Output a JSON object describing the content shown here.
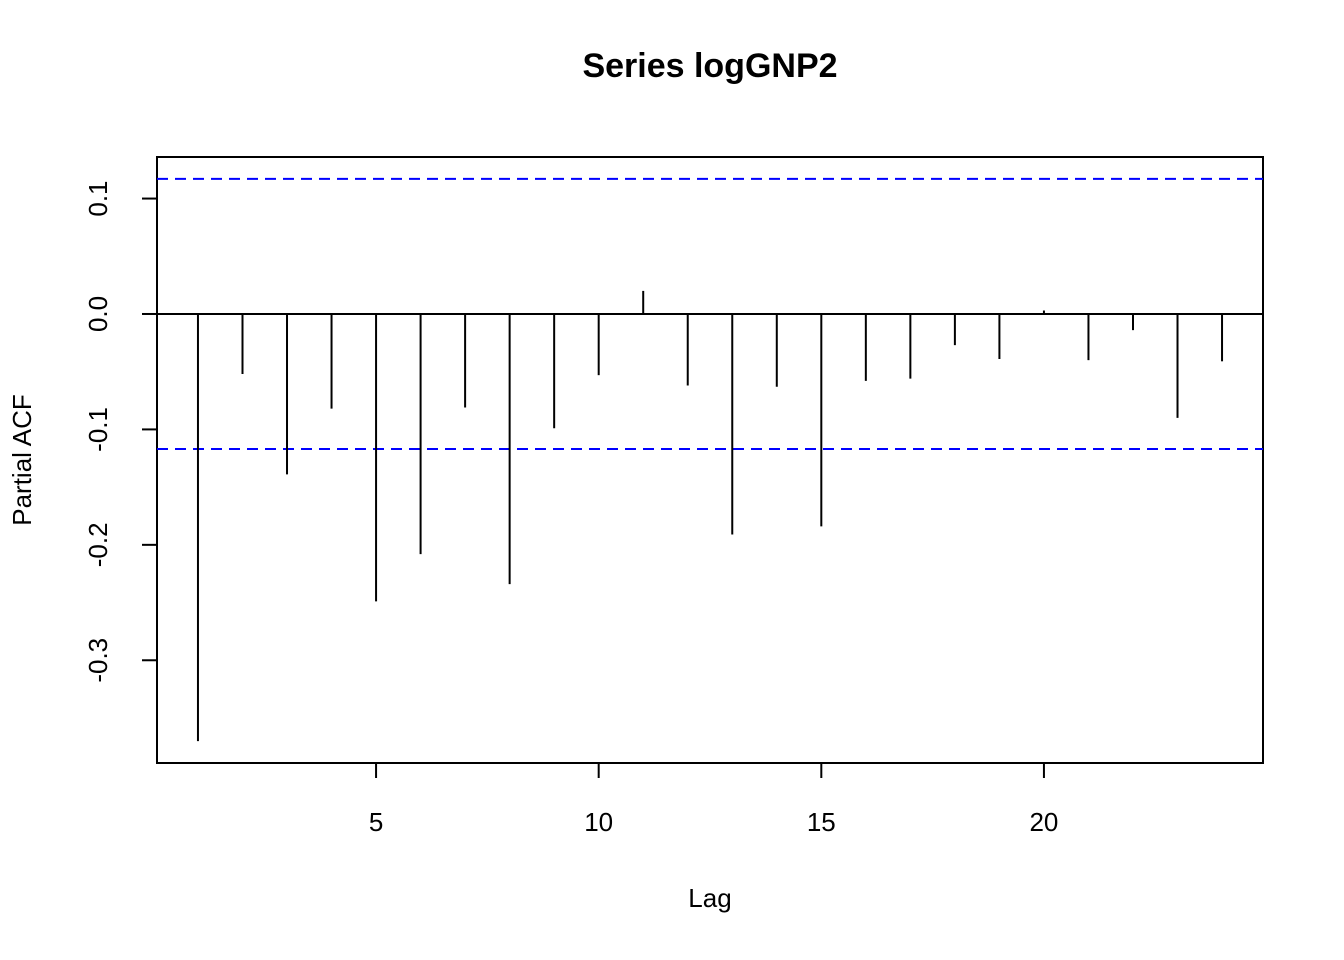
{
  "chart_data": {
    "type": "pacf",
    "title": "Series  logGNP2",
    "xlabel": "Lag",
    "ylabel": "Partial ACF",
    "x": [
      1,
      2,
      3,
      4,
      5,
      6,
      7,
      8,
      9,
      10,
      11,
      12,
      13,
      14,
      15,
      16,
      17,
      18,
      19,
      20,
      21,
      22,
      23,
      24
    ],
    "values": [
      -0.37,
      -0.052,
      -0.139,
      -0.082,
      -0.249,
      -0.208,
      -0.081,
      -0.234,
      -0.099,
      -0.053,
      0.02,
      -0.062,
      -0.191,
      -0.063,
      -0.184,
      -0.058,
      -0.056,
      -0.027,
      -0.039,
      0.003,
      -0.04,
      -0.014,
      -0.09,
      -0.041
    ],
    "color": "#000000",
    "ci": [
      0.117,
      -0.117
    ],
    "ci_color": "#0000ff",
    "xlim": [
      0.08,
      24.92
    ],
    "xticks": [
      5,
      10,
      15,
      20
    ],
    "ylim": [
      -0.389,
      0.136
    ],
    "yticks": [
      -0.3,
      -0.2,
      -0.1,
      {
        "value": 0,
        "label": "0.0"
      },
      0.1
    ]
  }
}
